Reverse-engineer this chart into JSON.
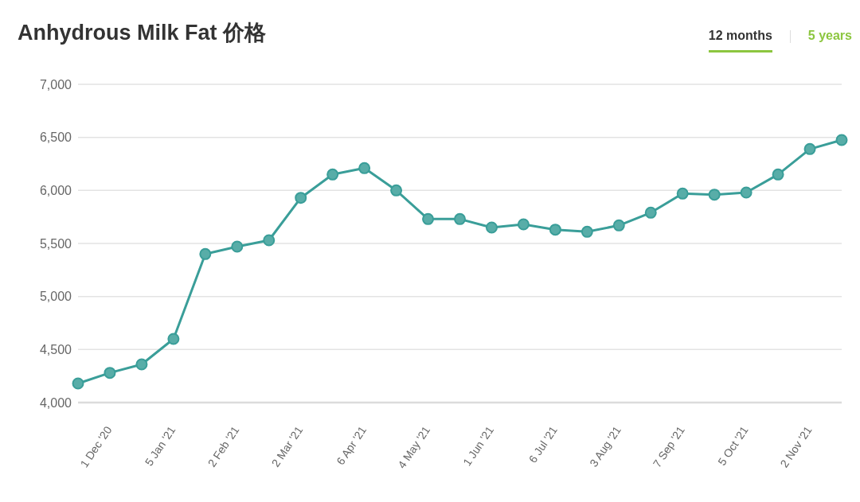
{
  "chart_data": {
    "type": "line",
    "title": "Anhydrous Milk Fat 价格",
    "categories": [
      null,
      "1 Dec '20",
      null,
      "5 Jan '21",
      null,
      "2 Feb '21",
      null,
      "2 Mar '21",
      null,
      "6 Apr '21",
      null,
      "4 May '21",
      null,
      "1 Jun '21",
      null,
      "6 Jul '21",
      null,
      "3 Aug '21",
      null,
      "7 Sep '21",
      null,
      "5 Oct '21",
      null,
      "2 Nov '21",
      null
    ],
    "series": [
      {
        "color": "#3a9e99",
        "values": [
          4180,
          4280,
          4360,
          4600,
          5400,
          5470,
          5530,
          5930,
          6150,
          6210,
          6000,
          5730,
          5730,
          5650,
          5680,
          5630,
          5610,
          5670,
          5790,
          5970,
          5960,
          5980,
          6150,
          6390,
          6475
        ]
      }
    ],
    "ylim": [
      4000,
      7000
    ],
    "yticks": [
      {
        "value": 4000,
        "label": "4,000"
      },
      {
        "value": 4500,
        "label": "4,500"
      },
      {
        "value": 5000,
        "label": "5,000"
      },
      {
        "value": 5500,
        "label": "5,500"
      },
      {
        "value": 6000,
        "label": "6,000"
      },
      {
        "value": 6500,
        "label": "6,500"
      },
      {
        "value": 7000,
        "label": "7,000"
      }
    ],
    "grid": "y",
    "marker": "circle",
    "annotations": [
      "12 months",
      "5 years"
    ]
  }
}
